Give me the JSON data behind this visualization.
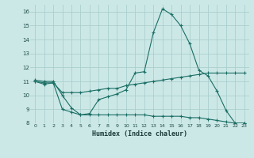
{
  "title": "",
  "xlabel": "Humidex (Indice chaleur)",
  "ylabel": "",
  "bg_color": "#cce8e6",
  "grid_color": "#aacfcd",
  "line_color": "#1a6e65",
  "xlim": [
    -0.5,
    23.5
  ],
  "ylim": [
    8,
    16.5
  ],
  "yticks": [
    8,
    9,
    10,
    11,
    12,
    13,
    14,
    15,
    16
  ],
  "xticks": [
    0,
    1,
    2,
    3,
    4,
    5,
    6,
    7,
    8,
    9,
    10,
    11,
    12,
    13,
    14,
    15,
    16,
    17,
    18,
    19,
    20,
    21,
    22,
    23
  ],
  "line1_x": [
    0,
    1,
    2,
    3,
    4,
    5,
    6,
    7,
    8,
    9,
    10,
    11,
    12,
    13,
    14,
    15,
    16,
    17,
    18,
    19,
    20,
    21,
    22,
    23
  ],
  "line1_y": [
    11.1,
    11.0,
    11.0,
    10.0,
    9.1,
    8.6,
    8.7,
    9.7,
    9.9,
    10.1,
    10.4,
    11.6,
    11.7,
    14.5,
    16.2,
    15.8,
    15.0,
    13.7,
    11.8,
    11.4,
    10.3,
    8.9,
    8.0,
    8.0
  ],
  "line2_x": [
    0,
    1,
    2,
    3,
    4,
    5,
    6,
    7,
    8,
    9,
    10,
    11,
    12,
    13,
    14,
    15,
    16,
    17,
    18,
    19,
    20,
    21,
    22,
    23
  ],
  "line2_y": [
    11.0,
    10.9,
    10.9,
    10.2,
    10.2,
    10.2,
    10.3,
    10.4,
    10.5,
    10.5,
    10.7,
    10.8,
    10.9,
    11.0,
    11.1,
    11.2,
    11.3,
    11.4,
    11.5,
    11.6,
    11.6,
    11.6,
    11.6,
    11.6
  ],
  "line3_x": [
    0,
    1,
    2,
    3,
    4,
    5,
    6,
    7,
    8,
    9,
    10,
    11,
    12,
    13,
    14,
    15,
    16,
    17,
    18,
    19,
    20,
    21,
    22,
    23
  ],
  "line3_y": [
    11.0,
    10.8,
    10.9,
    9.0,
    8.8,
    8.6,
    8.6,
    8.6,
    8.6,
    8.6,
    8.6,
    8.6,
    8.6,
    8.5,
    8.5,
    8.5,
    8.5,
    8.4,
    8.4,
    8.3,
    8.2,
    8.1,
    8.0,
    8.0
  ]
}
